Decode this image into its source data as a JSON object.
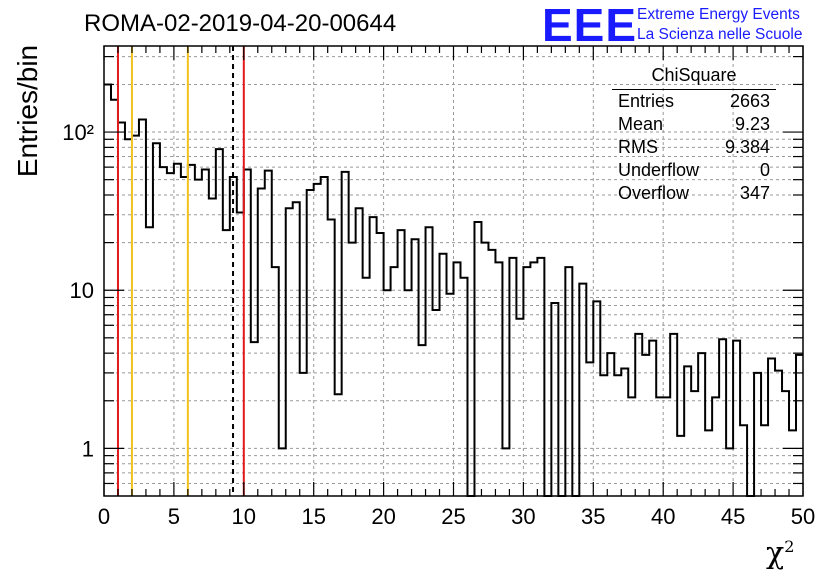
{
  "title": "ROMA-02-2019-04-20-00644",
  "logo": {
    "text": "EEE",
    "line1": "Extreme Energy Events",
    "line2": "La Scienza nelle Scuole",
    "color": "#1a1aff"
  },
  "stats": {
    "name": "ChiSquare",
    "rows": [
      {
        "label": "Entries",
        "value": "2663"
      },
      {
        "label": "Mean",
        "value": "9.23"
      },
      {
        "label": "RMS",
        "value": "9.384"
      },
      {
        "label": "Underflow",
        "value": "0"
      },
      {
        "label": "Overflow",
        "value": "347"
      }
    ]
  },
  "chart_data": {
    "type": "bar",
    "histogram": true,
    "title": "ROMA-02-2019-04-20-00644",
    "xlabel": "χ²",
    "ylabel": "Entries/bin",
    "xlim": [
      0,
      50
    ],
    "ylim": [
      0.5,
      350
    ],
    "yscale": "log",
    "grid": true,
    "x_ticks": [
      "0",
      "5",
      "10",
      "15",
      "20",
      "25",
      "30",
      "35",
      "40",
      "45",
      "50"
    ],
    "y_ticks": [
      {
        "value": 1,
        "label": "1"
      },
      {
        "value": 10,
        "label": "10"
      },
      {
        "value": 100,
        "label": "10²"
      }
    ],
    "bin_width": 0.5,
    "values": [
      200,
      160,
      115,
      90,
      95,
      120,
      25,
      85,
      60,
      55,
      63,
      52,
      62,
      50,
      58,
      38,
      78,
      24,
      52,
      31,
      58,
      4.7,
      44,
      57,
      14,
      1,
      33,
      36,
      3,
      43,
      47,
      52,
      28,
      2.2,
      56,
      20,
      33,
      12,
      29,
      23,
      10,
      14,
      24,
      10,
      21,
      4.5,
      25,
      7.5,
      17,
      9.5,
      15,
      12,
      0.4,
      27,
      20,
      18,
      15,
      1,
      16,
      6.6,
      14,
      15,
      16,
      0.4,
      8.3,
      0.4,
      14,
      0.4,
      11,
      3.5,
      8.5,
      2.9,
      4,
      2.9,
      3.2,
      2.1,
      5.3,
      3.9,
      4.8,
      2.1,
      2.1,
      5.3,
      1.2,
      3.3,
      2.3,
      4,
      1.3,
      2.1,
      4.9,
      1,
      4.8,
      1.4,
      0.5,
      3,
      1.4,
      3.7,
      3.1,
      2.3,
      1.3,
      3.9
    ],
    "markers": [
      {
        "x": 1,
        "color": "#e31a1c",
        "style": "solid"
      },
      {
        "x": 2,
        "color": "#f2c21c",
        "style": "solid"
      },
      {
        "x": 6,
        "color": "#f2c21c",
        "style": "solid"
      },
      {
        "x": 9.23,
        "color": "#000000",
        "style": "dashed"
      },
      {
        "x": 10,
        "color": "#e31a1c",
        "style": "solid"
      }
    ]
  }
}
